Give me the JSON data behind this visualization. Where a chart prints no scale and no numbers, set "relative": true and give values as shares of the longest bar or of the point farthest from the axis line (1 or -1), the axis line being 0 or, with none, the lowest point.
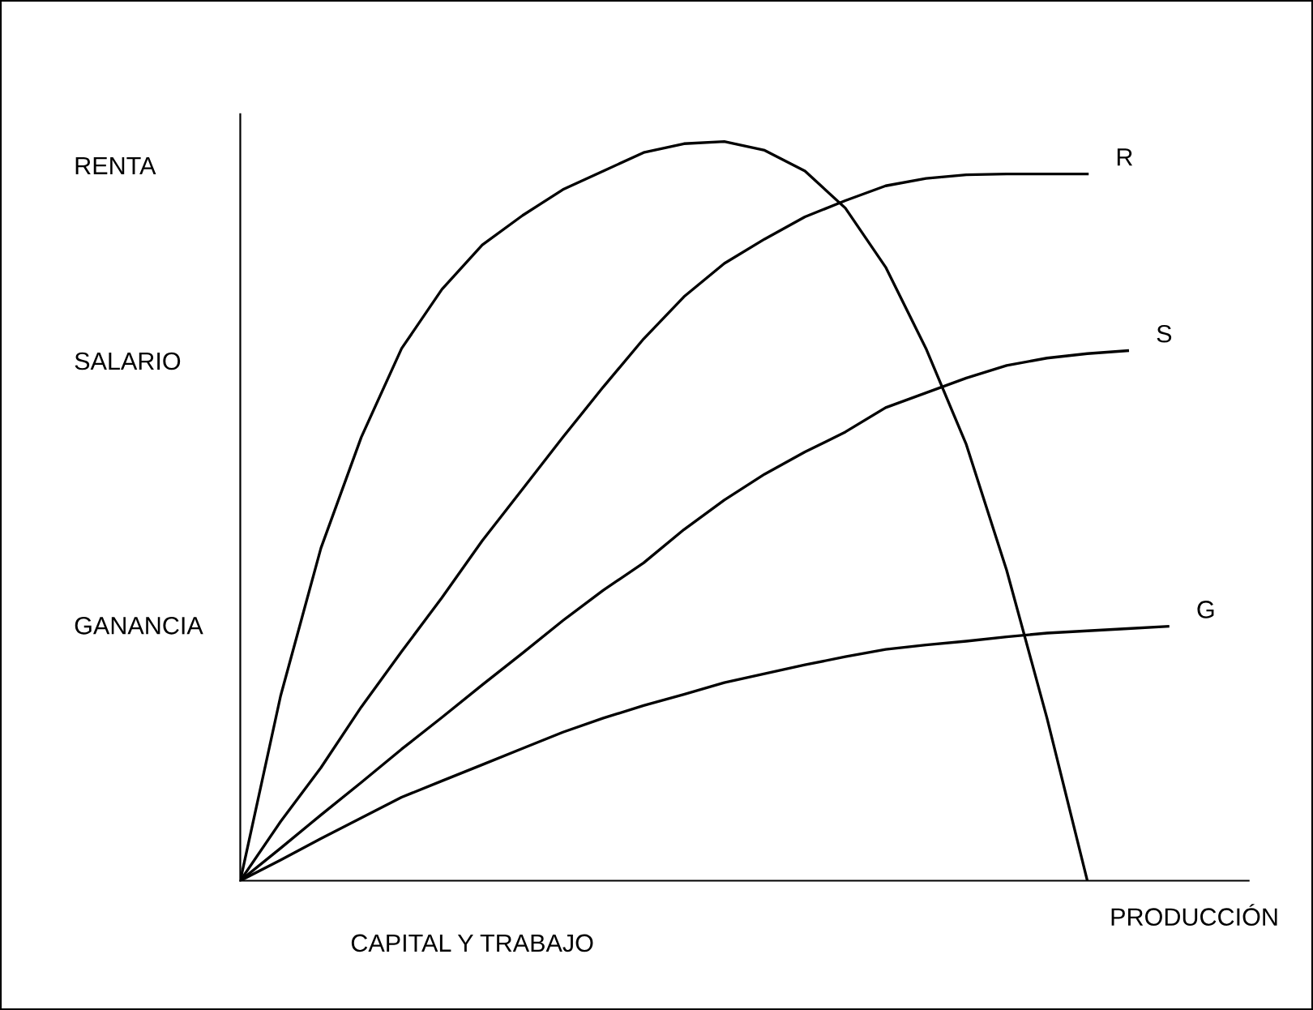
{
  "chart_data": {
    "type": "line",
    "relative": true,
    "xlabel": "CAPITAL Y TRABAJO",
    "marker": "none",
    "line_style": "solid",
    "annotations": [
      "RENTA",
      "SALARIO",
      "GANANCIA",
      "PRODUCCIÓN"
    ],
    "categories": [
      null,
      null,
      null,
      null,
      null,
      null,
      null,
      null,
      null,
      null,
      null,
      null,
      null,
      null,
      null,
      null,
      null,
      null,
      null,
      null,
      null,
      null,
      null,
      null,
      null,
      null
    ],
    "series": [
      {
        "color": "#000000",
        "values": [
          0,
          0.25,
          0.45,
          0.6,
          0.72,
          0.8,
          0.86,
          0.9,
          0.935,
          0.96,
          0.985,
          0.997,
          1,
          0.988,
          0.96,
          0.91,
          0.83,
          0.72,
          0.59,
          0.42,
          0.22,
          0,
          null,
          null,
          null,
          null
        ]
      },
      {
        "name": "R",
        "color": "#000000",
        "values": [
          0,
          0.08,
          0.153,
          0.235,
          0.31,
          0.383,
          0.46,
          0.53,
          0.6,
          0.668,
          0.733,
          0.79,
          0.835,
          0.868,
          0.898,
          0.92,
          0.94,
          0.95,
          0.955,
          0.956,
          0.956,
          0.956,
          null,
          null,
          null,
          null
        ]
      },
      {
        "name": "S",
        "color": "#000000",
        "values": [
          0,
          0.044,
          0.089,
          0.133,
          0.178,
          0.221,
          0.265,
          0.308,
          0.352,
          0.393,
          0.43,
          0.475,
          0.515,
          0.55,
          0.58,
          0.607,
          0.64,
          0.66,
          0.68,
          0.697,
          0.707,
          0.713,
          0.717,
          null,
          null,
          null
        ]
      },
      {
        "name": "G",
        "color": "#000000",
        "values": [
          0,
          0.028,
          0.057,
          0.085,
          0.113,
          0.135,
          0.157,
          0.179,
          0.201,
          0.22,
          0.237,
          0.252,
          0.268,
          0.28,
          0.292,
          0.303,
          0.313,
          0.319,
          0.324,
          0.33,
          0.335,
          0.338,
          0.341,
          0.344,
          null,
          null
        ]
      }
    ]
  }
}
